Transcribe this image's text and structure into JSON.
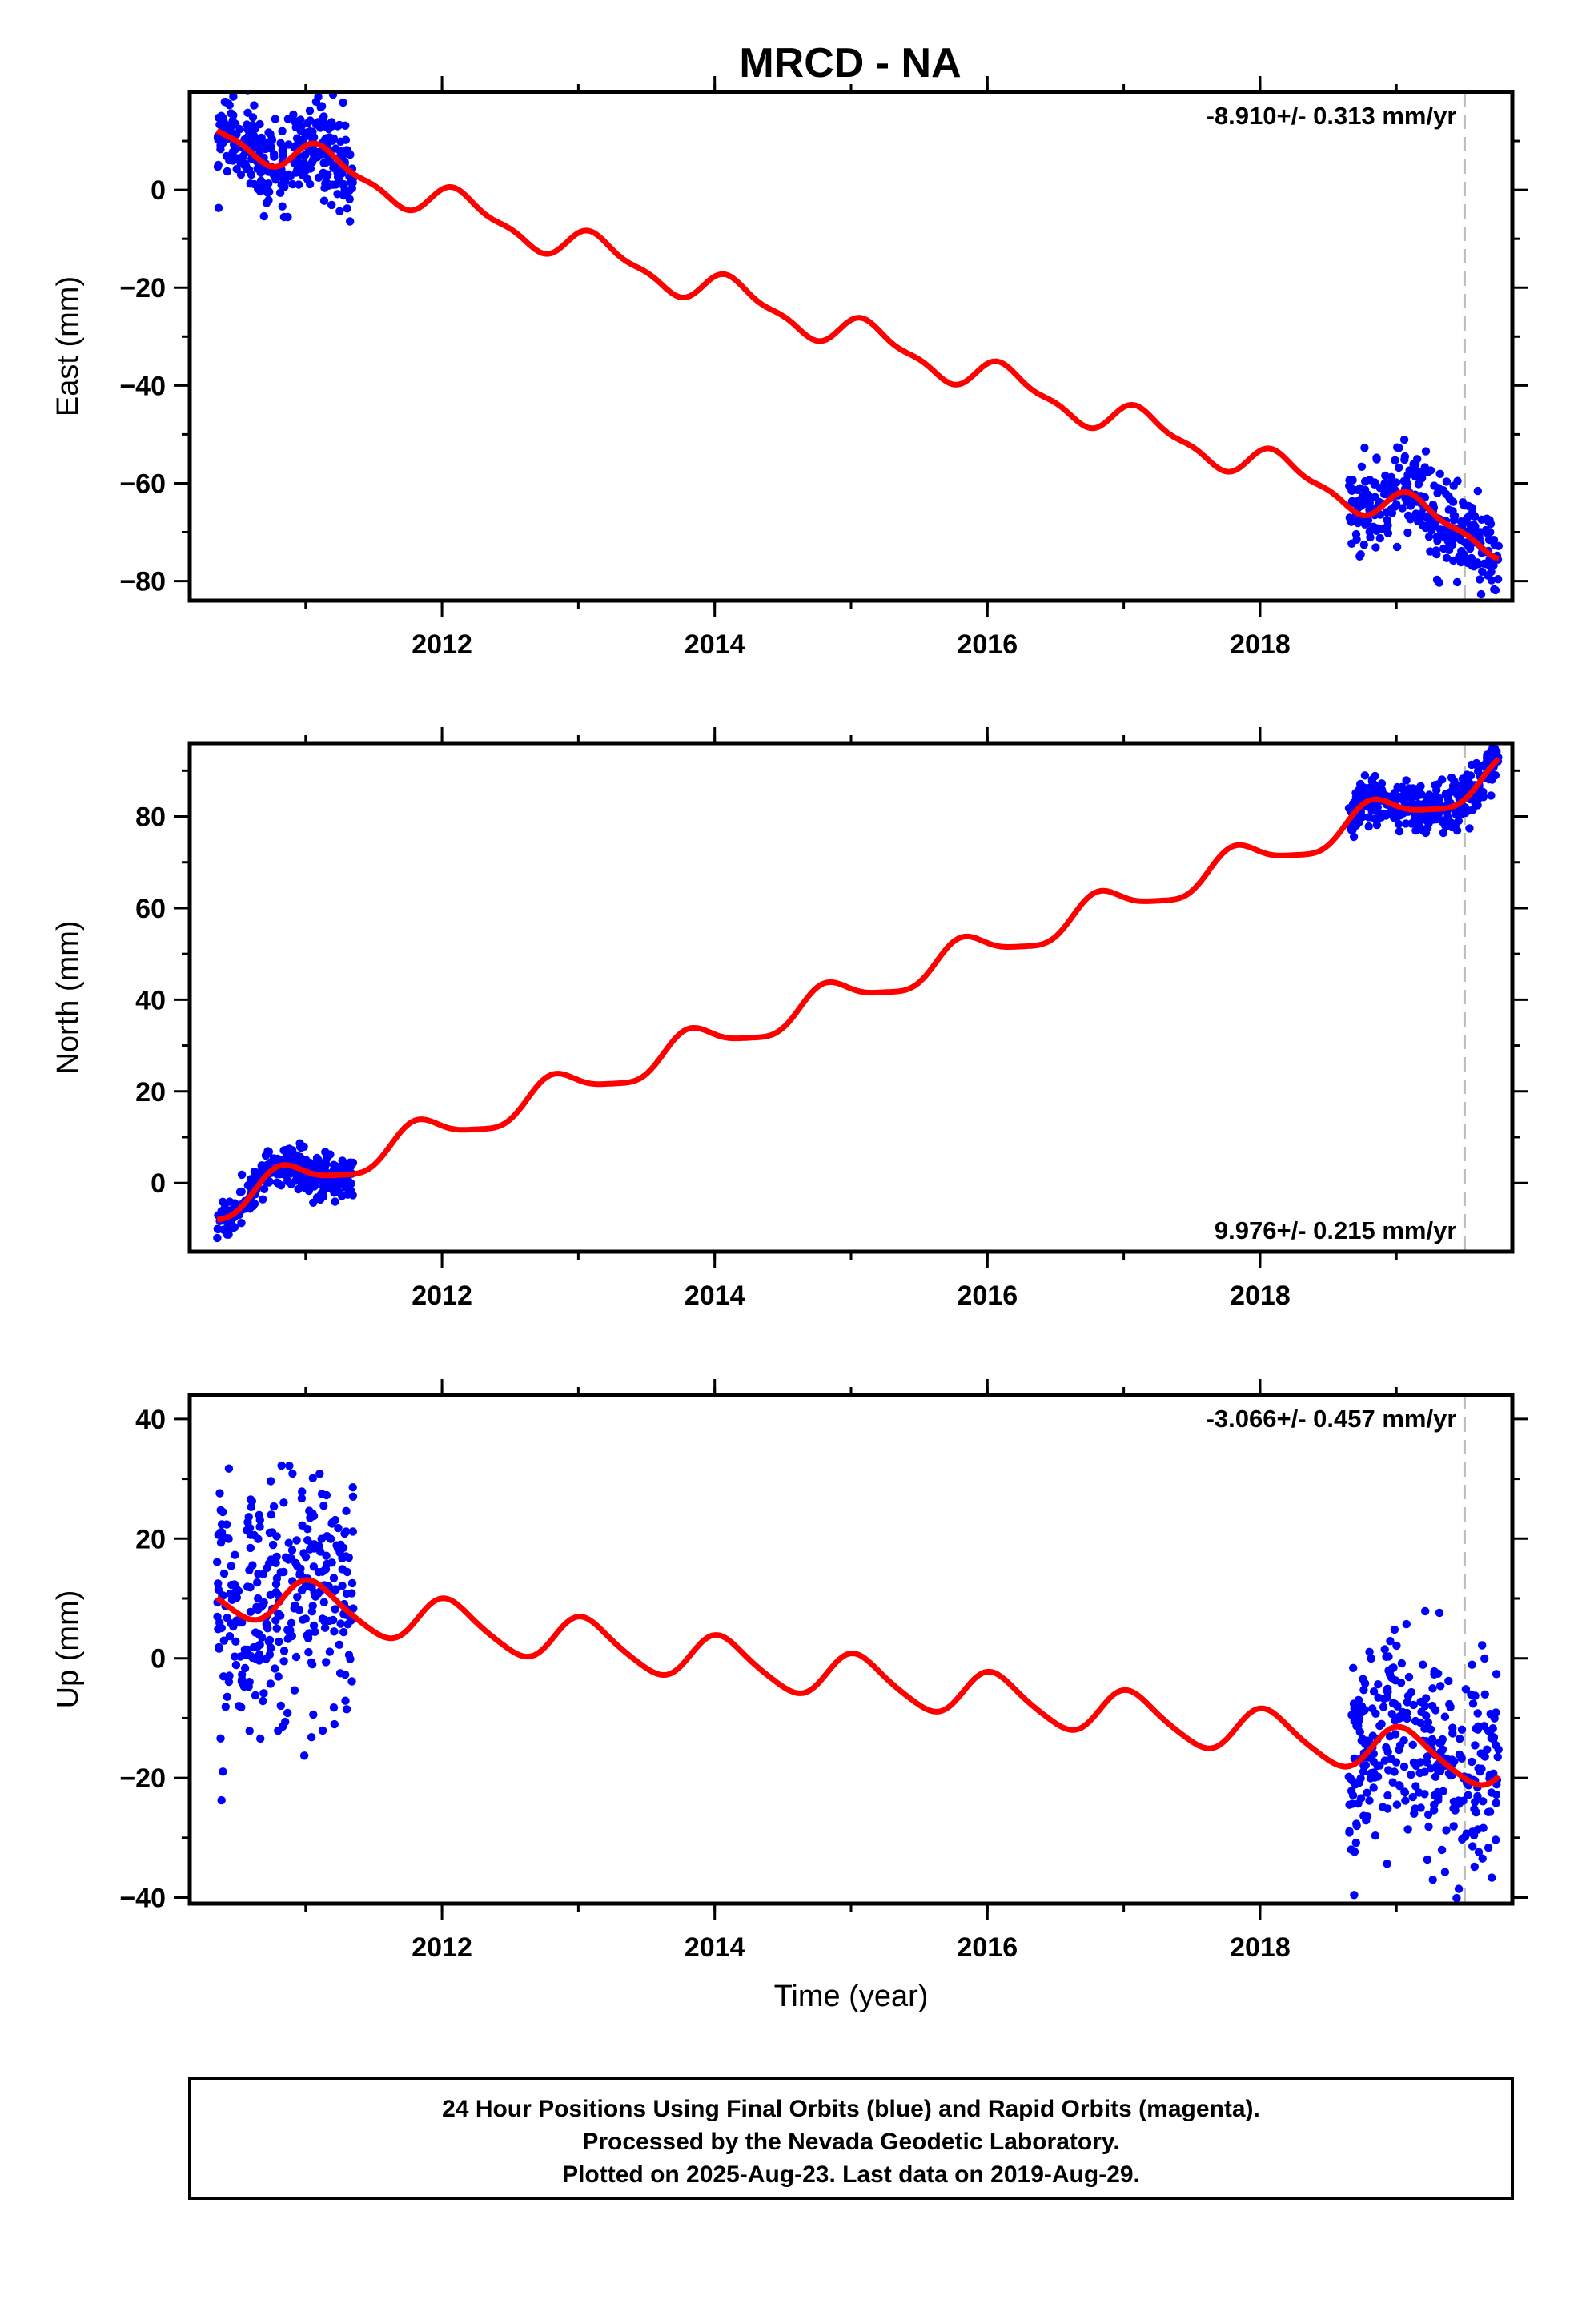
{
  "title": "MRCD - NA",
  "colors": {
    "points": "#0000ff",
    "fit": "#ff0000",
    "frame": "#000000",
    "marker": "#bbbbbb"
  },
  "footer": {
    "line1": "24 Hour Positions Using Final Orbits (blue) and Rapid Orbits (magenta).",
    "line2": "Processed by the Nevada Geodetic Laboratory.",
    "line3": "Plotted on 2025-Aug-23. Last data on 2019-Aug-29."
  },
  "chart_data": [
    {
      "type": "scatter",
      "id": "east",
      "ylabel": "East (mm)",
      "xlabel": "",
      "xlim": [
        2010.15,
        2019.85
      ],
      "ylim": [
        -84,
        20
      ],
      "yticks": [
        -80,
        -60,
        -40,
        -20,
        0
      ],
      "xticks": [
        2012,
        2014,
        2016,
        2018
      ],
      "rate": "-8.910+/- 0.313 mm/yr",
      "rate_position": "top-right",
      "marker_x": 2019.5,
      "fit": {
        "x0": 2010.35,
        "x1": 2019.75,
        "start": 12,
        "slope": -8.91,
        "annual_amp": 3.2,
        "semiannual_amp": 1.2,
        "phase": 0.6
      },
      "clusters": [
        {
          "x": [
            2010.35,
            2011.35
          ],
          "scatter": 4.5
        },
        {
          "x": [
            2018.65,
            2019.75
          ],
          "scatter": 4.5
        }
      ]
    },
    {
      "type": "scatter",
      "id": "north",
      "ylabel": "North (mm)",
      "xlabel": "",
      "xlim": [
        2010.15,
        2019.85
      ],
      "ylim": [
        -15,
        96
      ],
      "yticks": [
        0,
        20,
        40,
        60,
        80
      ],
      "xticks": [
        2012,
        2014,
        2016,
        2018
      ],
      "rate": "9.976+/- 0.215 mm/yr",
      "rate_position": "bottom-right",
      "marker_x": 2019.5,
      "fit": {
        "x0": 2010.35,
        "x1": 2019.75,
        "start": -5,
        "slope": 9.976,
        "annual_amp": 3.5,
        "semiannual_amp": 0.8,
        "phase": 2.6
      },
      "clusters": [
        {
          "x": [
            2010.35,
            2011.35
          ],
          "scatter": 2.2
        },
        {
          "x": [
            2018.65,
            2019.75
          ],
          "scatter": 2.8
        }
      ]
    },
    {
      "type": "scatter",
      "id": "up",
      "ylabel": "Up (mm)",
      "xlabel": "Time (year)",
      "xlim": [
        2010.15,
        2019.85
      ],
      "ylim": [
        -41,
        44
      ],
      "yticks": [
        -40,
        -20,
        0,
        20,
        40
      ],
      "xticks": [
        2012,
        2014,
        2016,
        2018
      ],
      "rate": "-3.066+/- 0.457 mm/yr",
      "rate_position": "top-right",
      "marker_x": 2019.5,
      "fit": {
        "x0": 2010.35,
        "x1": 2019.75,
        "start": 11,
        "slope": -3.066,
        "annual_amp": 3.8,
        "semiannual_amp": 0.6,
        "phase": 1.2
      },
      "clusters": [
        {
          "x": [
            2010.35,
            2011.35
          ],
          "scatter": 10
        },
        {
          "x": [
            2018.65,
            2019.75
          ],
          "scatter": 9
        }
      ]
    }
  ]
}
